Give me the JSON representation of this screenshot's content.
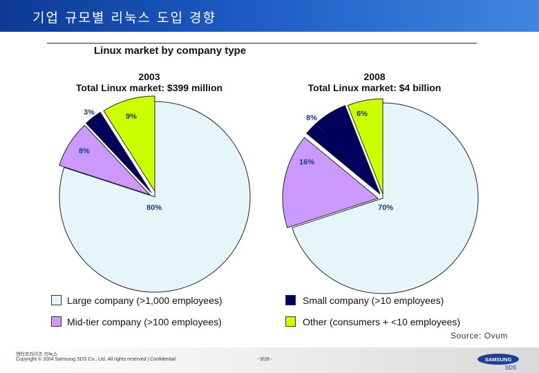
{
  "header": {
    "title": "기업 규모별 리눅스 도입 경향"
  },
  "chart_heading": "Linux market by company type",
  "colors": {
    "large": "#E6F5FA",
    "small": "#00005C",
    "mid": "#CC99FF",
    "other": "#CCFF00",
    "title_bar": "#1c5cc4"
  },
  "chart_data": [
    {
      "type": "pie",
      "year": "2003",
      "subtitle": "Total Linux market: $399 million",
      "slices": [
        {
          "category": "Large company (>1,000 employees)",
          "key": "large",
          "value": 80,
          "label": "80%"
        },
        {
          "category": "Mid-tier company (>100 employees)",
          "key": "mid",
          "value": 8,
          "label": "8%"
        },
        {
          "category": "Small company (>10 employees)",
          "key": "small",
          "value": 3,
          "label": "3%"
        },
        {
          "category": "Other (consumers + <10 employees)",
          "key": "other",
          "value": 9,
          "label": "9%"
        }
      ]
    },
    {
      "type": "pie",
      "year": "2008",
      "subtitle": "Total Linux market: $4 billion",
      "slices": [
        {
          "category": "Large company (>1,000 employees)",
          "key": "large",
          "value": 70,
          "label": "70%"
        },
        {
          "category": "Mid-tier company (>100 employees)",
          "key": "mid",
          "value": 16,
          "label": "16%"
        },
        {
          "category": "Small company (>10 employees)",
          "key": "small",
          "value": 8,
          "label": "8%"
        },
        {
          "category": "Other (consumers + <10 employees)",
          "key": "other",
          "value": 6,
          "label": "6%"
        }
      ]
    }
  ],
  "legend": {
    "large": "Large company (>1,000 employees)",
    "small": "Small company (>10 employees)",
    "mid": "Mid-tier company (>100 employees)",
    "other": "Other (consumers + <10 employees)"
  },
  "source": "Source: Ovum",
  "footer": {
    "line1": "엔터프라이즈 리눅스",
    "copyright": "Copyright © 2004 Samsung SDS Co., Ltd. All rights reserved  |  Confidential",
    "page": "- 9/26 -",
    "logo_text": "SAMSUNG",
    "logo_sub": "SDS"
  }
}
